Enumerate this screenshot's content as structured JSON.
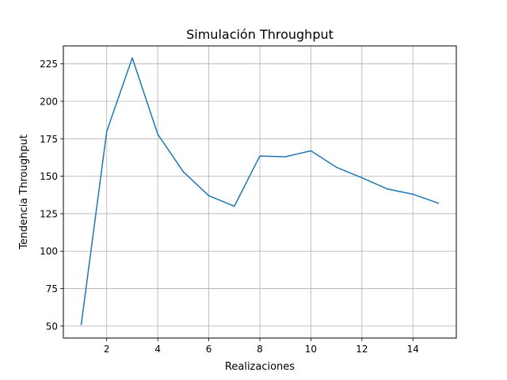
{
  "chart_data": {
    "type": "line",
    "title": "Simulación Throughput",
    "xlabel": "Realizaciones",
    "ylabel": "Tendencia Throughput",
    "xlim": [
      0.3,
      15.7
    ],
    "ylim": [
      42,
      237
    ],
    "xticks": [
      2,
      4,
      6,
      8,
      10,
      12,
      14
    ],
    "yticks": [
      50,
      75,
      100,
      125,
      150,
      175,
      200,
      225
    ],
    "grid": true,
    "series": [
      {
        "color": "#1f77b4",
        "x": [
          1,
          2,
          3,
          4,
          5,
          6,
          7,
          8,
          9,
          10,
          11,
          12,
          13,
          14,
          15
        ],
        "y": [
          51,
          180,
          229,
          178,
          153,
          137,
          130,
          163.5,
          163,
          167,
          156,
          149,
          141.5,
          138,
          132
        ]
      }
    ]
  }
}
